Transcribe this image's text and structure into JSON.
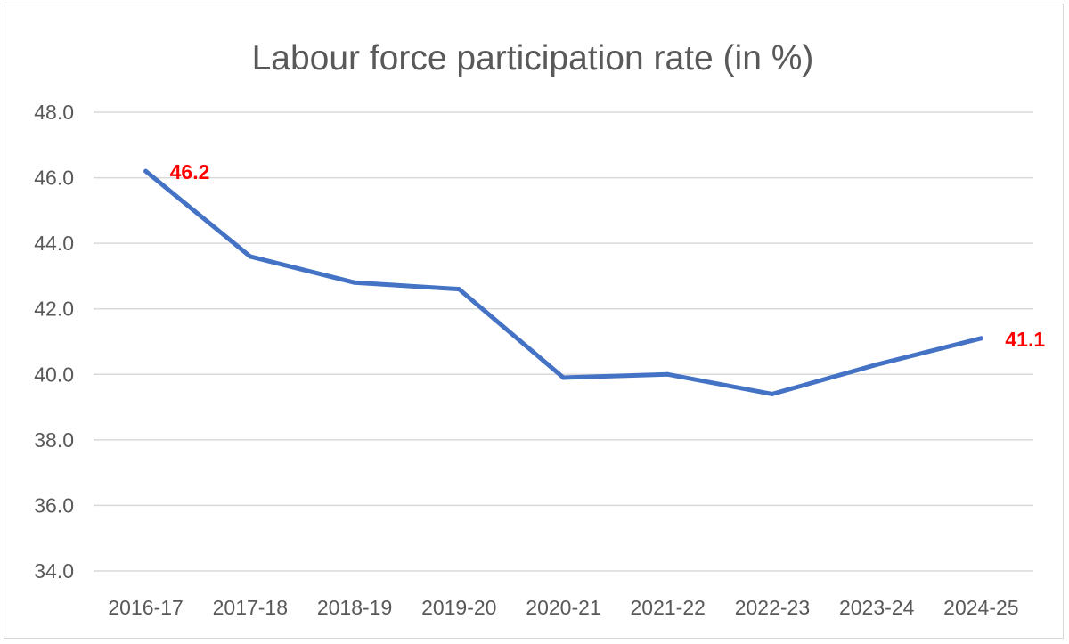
{
  "chart_data": {
    "type": "line",
    "title": "Labour force participation rate (in %)",
    "xlabel": "",
    "ylabel": "",
    "categories": [
      "2016-17",
      "2017-18",
      "2018-19",
      "2019-20",
      "2020-21",
      "2021-22",
      "2022-23",
      "2023-24",
      "2024-25"
    ],
    "series": [
      {
        "values": [
          46.2,
          43.6,
          42.8,
          42.6,
          39.9,
          40.0,
          39.4,
          40.3,
          41.1
        ]
      }
    ],
    "ylim": [
      34,
      48
    ],
    "yticks": [
      "34.0",
      "36.0",
      "38.0",
      "40.0",
      "42.0",
      "44.0",
      "46.0",
      "48.0"
    ],
    "grid": true,
    "legend": "none",
    "data_labels": [
      {
        "index": 0,
        "text": "46.2"
      },
      {
        "index": 8,
        "text": "41.1"
      }
    ],
    "colors": {
      "line": "#4472c4",
      "label": "#ff0000",
      "grid": "#d9d9d9",
      "text": "#595959"
    }
  }
}
